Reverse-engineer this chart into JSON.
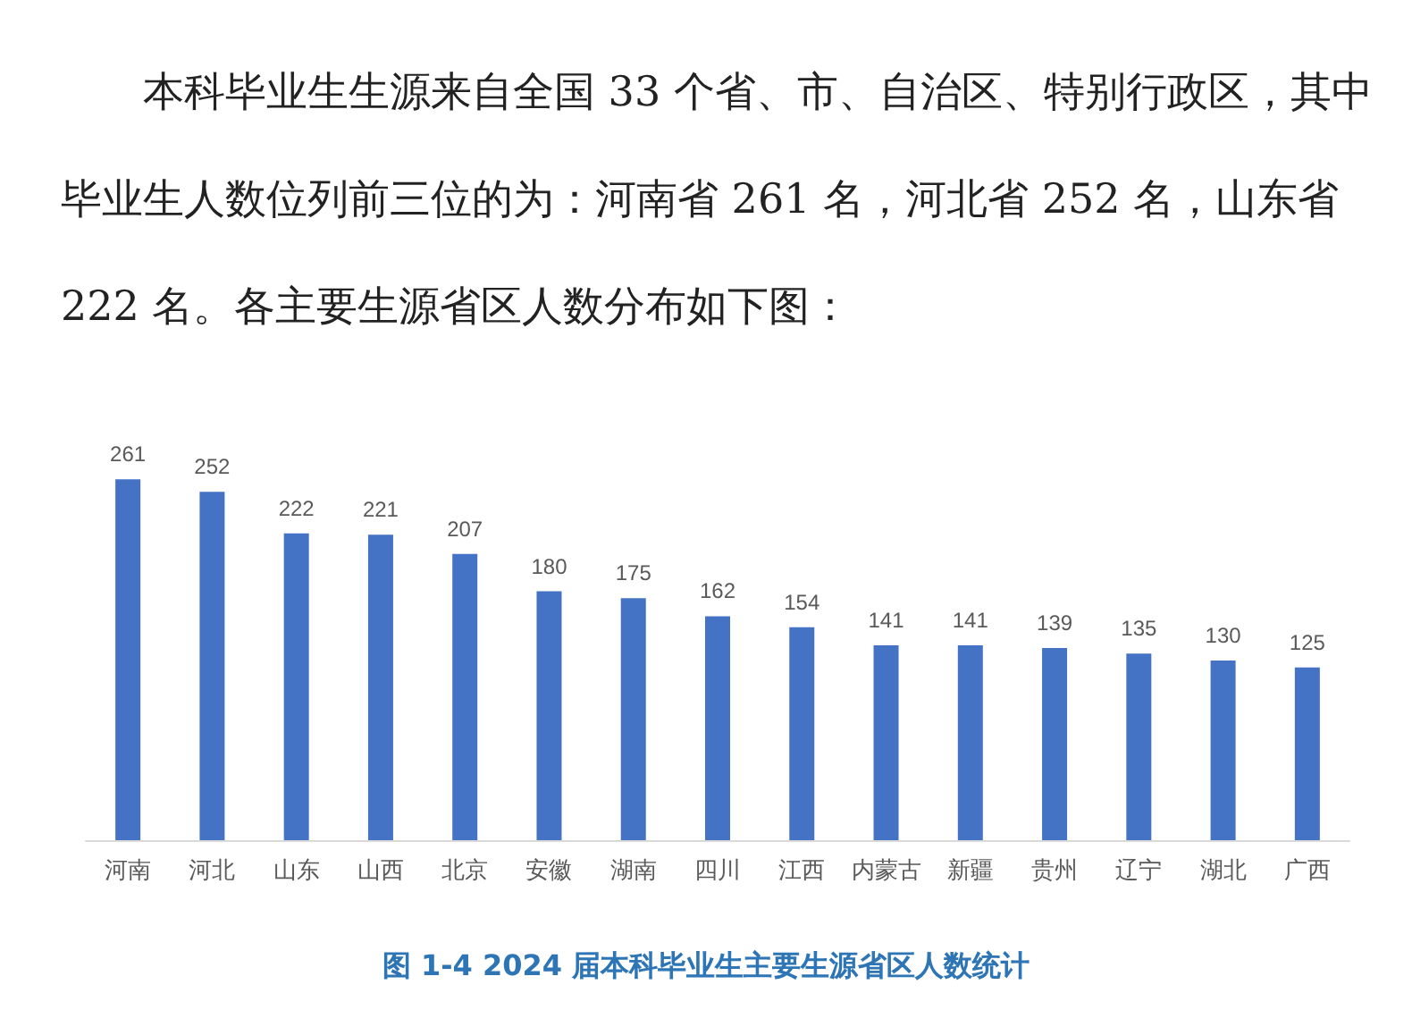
{
  "chart_data": {
    "type": "bar",
    "title": "图 1-4 2024 届本科毕业生主要生源省区人数统计",
    "annotations": [
      "本科毕业生生源来自全国 33 个省、市、自治区、特别行政区，其中毕业生人数位列前三位的为：河南省 261 名，河北省 252 名，山东省 222 名。各主要生源省区人数分布如下图："
    ],
    "categories": [
      "河南",
      "河北",
      "山东",
      "山西",
      "北京",
      "安徽",
      "湖南",
      "四川",
      "江西",
      "内蒙古",
      "新疆",
      "贵州",
      "辽宁",
      "湖北",
      "广西"
    ],
    "values": [
      261,
      252,
      222,
      221,
      207,
      180,
      175,
      162,
      154,
      141,
      141,
      139,
      135,
      130,
      125
    ],
    "color": "#4472c4",
    "data_labels": true
  }
}
